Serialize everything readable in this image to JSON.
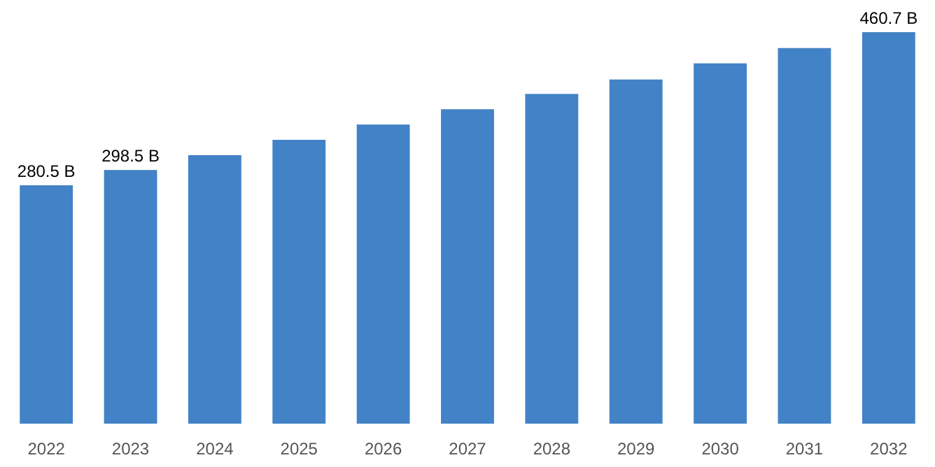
{
  "chart_data": {
    "type": "bar",
    "categories": [
      "2022",
      "2023",
      "2024",
      "2025",
      "2026",
      "2027",
      "2028",
      "2029",
      "2030",
      "2031",
      "2032"
    ],
    "values": [
      280.5,
      298.5,
      316,
      334,
      352,
      370,
      388,
      405,
      424,
      442,
      460.7
    ],
    "value_labels": [
      "280.5 B",
      "298.5 B",
      null,
      null,
      null,
      null,
      null,
      null,
      null,
      null,
      "460.7 B"
    ],
    "color": "#4282c6"
  }
}
